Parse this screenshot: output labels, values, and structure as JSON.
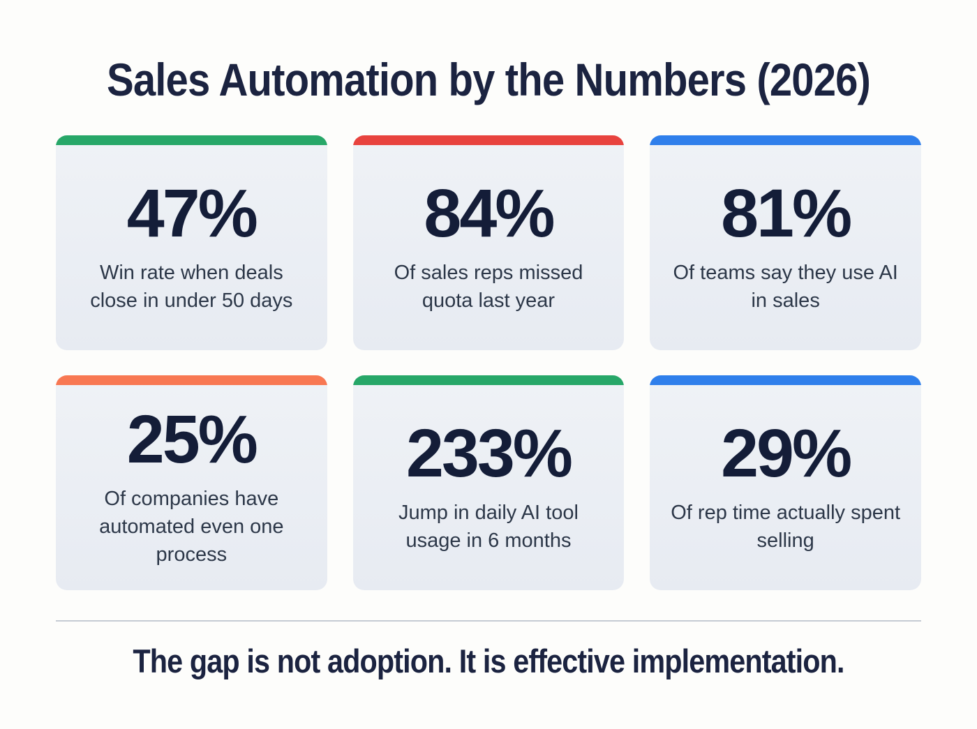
{
  "title": "Sales Automation by the Numbers (2026)",
  "footer": "The gap is not adoption. It is effective implementation.",
  "colors": {
    "page_bg": "#fdfdfb",
    "card_bg": "#eaeef4",
    "navy_text": "#1b2340",
    "label_text": "#2c3748",
    "divider": "#c5cbd3",
    "green": "#27a768",
    "red": "#e8433e",
    "blue": "#2f7feb",
    "orange": "#f87852"
  },
  "cards": [
    {
      "value": "47%",
      "label": "Win rate when deals close in under 50 days",
      "accent": "green",
      "accent_color": "#27a768"
    },
    {
      "value": "84%",
      "label": "Of sales reps missed quota last year",
      "accent": "red",
      "accent_color": "#e8433e"
    },
    {
      "value": "81%",
      "label": "Of teams say they use AI in sales",
      "accent": "blue",
      "accent_color": "#2f7feb"
    },
    {
      "value": "25%",
      "label": "Of companies have automated even one process",
      "accent": "orange",
      "accent_color": "#f87852"
    },
    {
      "value": "233%",
      "label": "Jump in daily AI tool usage in 6 months",
      "accent": "green",
      "accent_color": "#27a768"
    },
    {
      "value": "29%",
      "label": "Of rep time actually spent selling",
      "accent": "blue",
      "accent_color": "#2f7feb"
    }
  ],
  "chart_data": {
    "type": "table",
    "title": "Sales Automation by the Numbers (2026)",
    "categories": [
      "Win rate when deals close in under 50 days",
      "Of sales reps missed quota last year",
      "Of teams say they use AI in sales",
      "Of companies have automated even one process",
      "Jump in daily AI tool usage in 6 months",
      "Of rep time actually spent selling"
    ],
    "values": [
      47,
      84,
      81,
      25,
      233,
      29
    ],
    "unit": "%",
    "annotation": "The gap is not adoption. It is effective implementation.",
    "accent_colors": [
      "#27a768",
      "#e8433e",
      "#2f7feb",
      "#f87852",
      "#27a768",
      "#2f7feb"
    ]
  }
}
